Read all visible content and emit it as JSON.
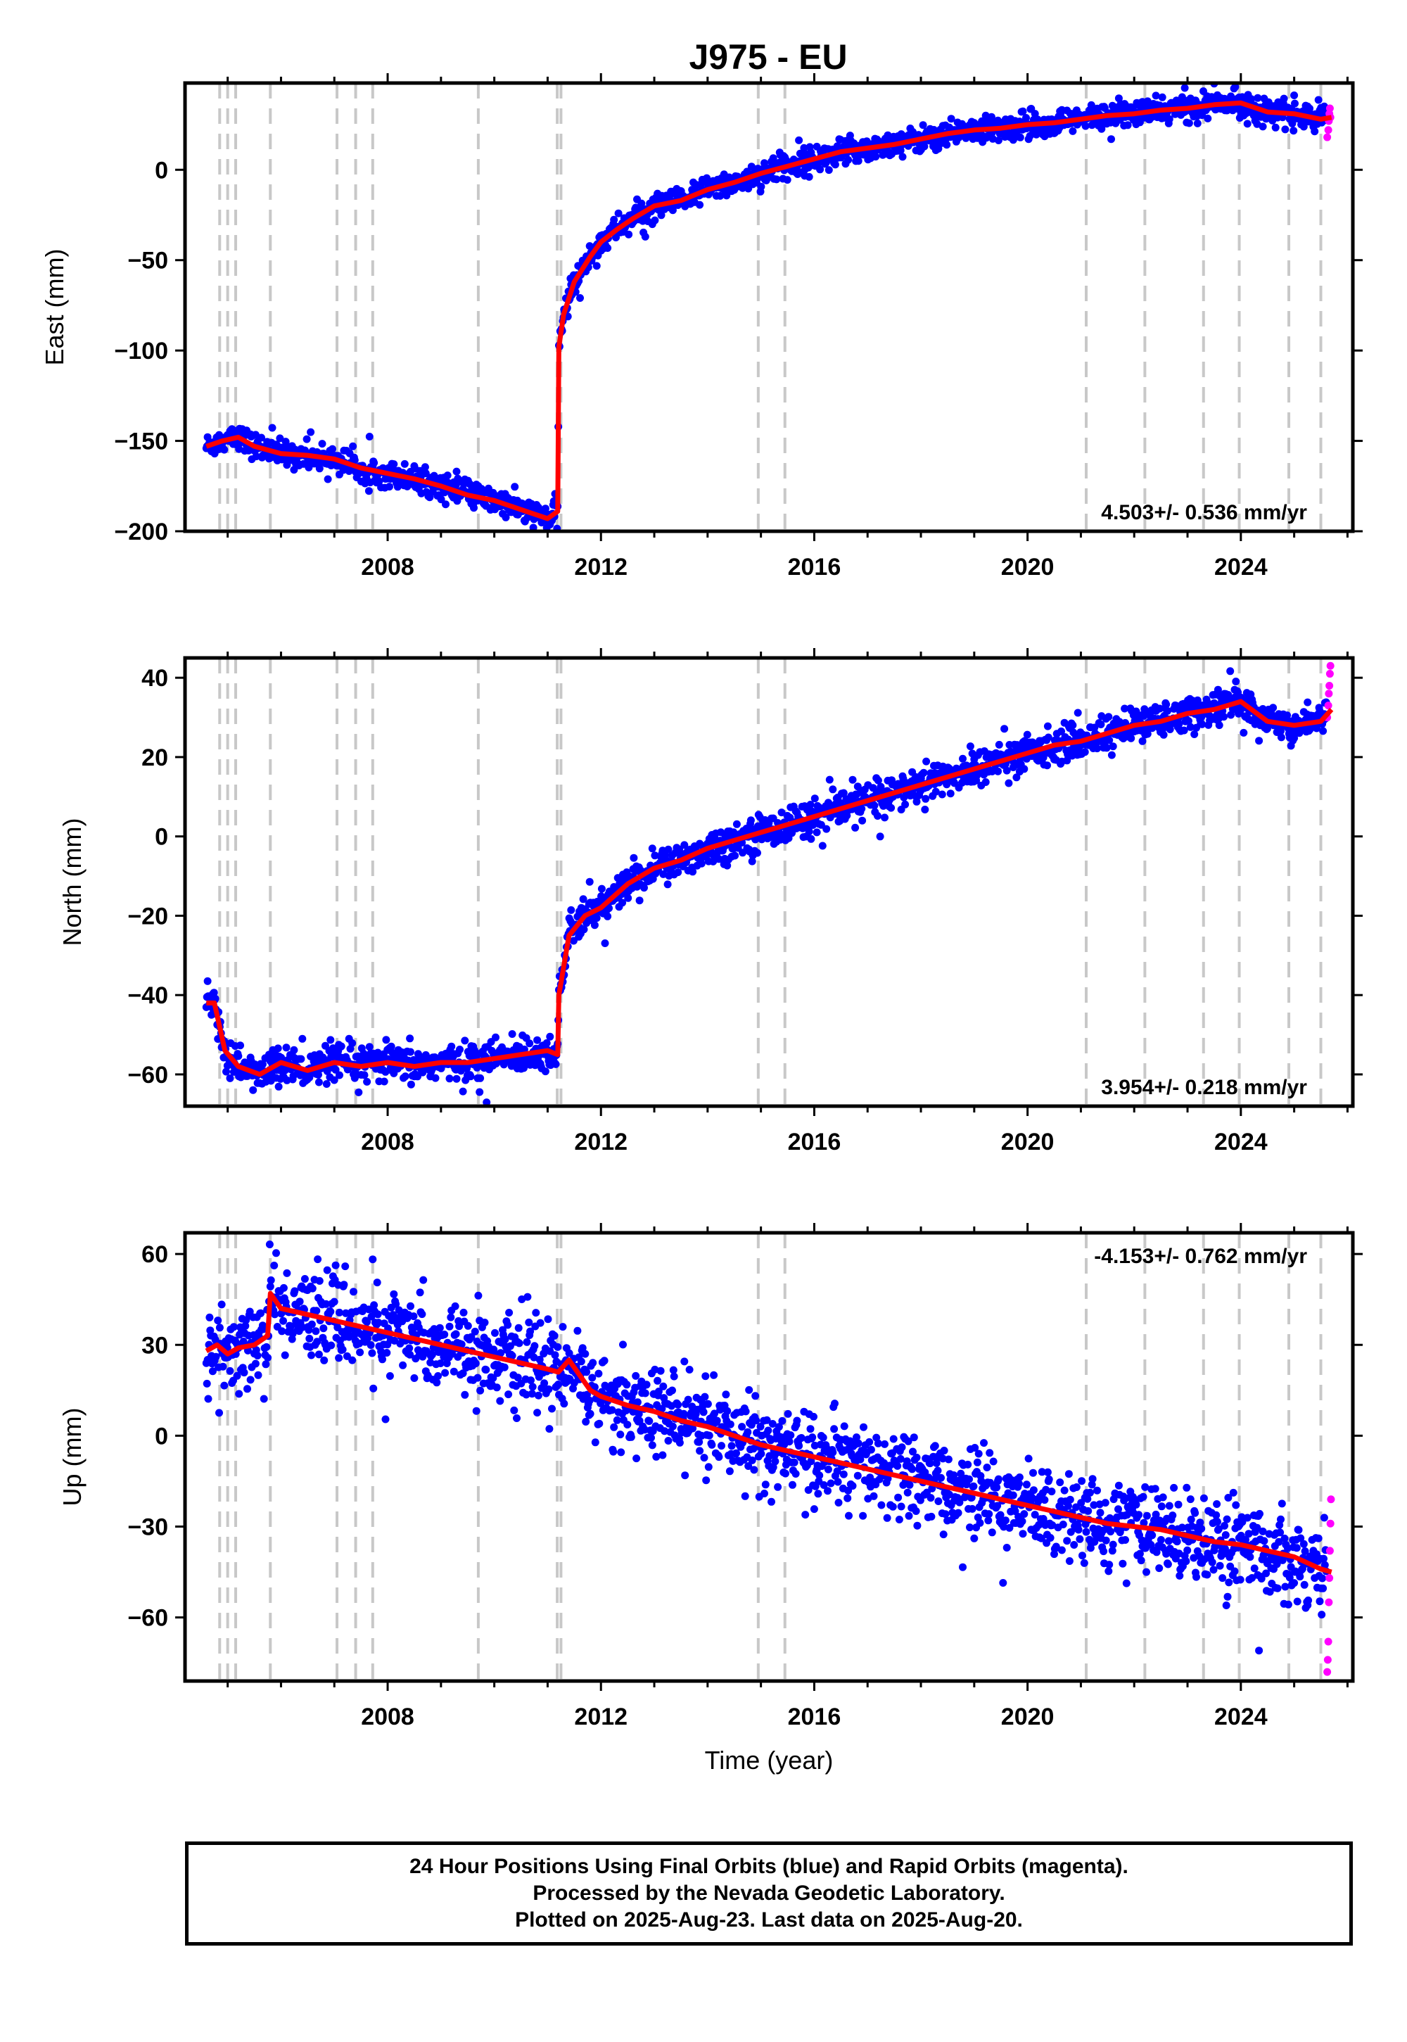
{
  "chart_data": {
    "type": "scatter",
    "title": "J975 - EU",
    "xlabel": "Time (year)",
    "xlim": [
      2004.2,
      2026.1
    ],
    "x_ticks": [
      "2008",
      "2012",
      "2016",
      "2020",
      "2024"
    ],
    "event_lines": [
      2004.85,
      2005.0,
      2005.15,
      2005.8,
      2007.05,
      2007.4,
      2007.72,
      2009.7,
      2011.18,
      2011.25,
      2014.95,
      2015.45,
      2021.1,
      2022.2,
      2023.3,
      2023.97,
      2024.9,
      2025.5
    ],
    "colors": {
      "final_orbits": "#0000ff",
      "rapid_orbits": "#ff00ff",
      "model": "#ff0000",
      "event_line": "#c8c8c8"
    },
    "panels": [
      {
        "component": "east",
        "ylabel": "East (mm)",
        "ylim": [
          -200,
          48
        ],
        "y_ticks": [
          "0",
          "−50",
          "−100",
          "−150",
          "−200"
        ],
        "rate": "4.503+/- 0.536 mm/yr",
        "model": {
          "x": [
            2004.6,
            2004.9,
            2005.2,
            2005.5,
            2006.0,
            2006.5,
            2007.0,
            2007.5,
            2008.0,
            2008.5,
            2009.0,
            2009.5,
            2010.0,
            2010.5,
            2011.0,
            2011.19,
            2011.21,
            2011.3,
            2011.5,
            2011.8,
            2012.0,
            2012.3,
            2012.6,
            2013.0,
            2013.5,
            2014.0,
            2014.5,
            2015.0,
            2015.5,
            2016.0,
            2016.5,
            2017.0,
            2017.5,
            2018.0,
            2018.5,
            2019.0,
            2019.5,
            2020.0,
            2020.5,
            2021.0,
            2021.5,
            2022.0,
            2022.5,
            2023.0,
            2023.5,
            2024.0,
            2024.5,
            2025.0,
            2025.5,
            2025.7
          ],
          "y": [
            -153,
            -150,
            -148,
            -153,
            -157,
            -158,
            -160,
            -165,
            -168,
            -171,
            -175,
            -180,
            -183,
            -188,
            -193,
            -189,
            -98,
            -80,
            -62,
            -48,
            -40,
            -33,
            -27,
            -20,
            -17,
            -11,
            -7,
            -2,
            2,
            6,
            10,
            12,
            14,
            17,
            20,
            22,
            23,
            25,
            26,
            28,
            30,
            31,
            33,
            34,
            36,
            37,
            32,
            31,
            28,
            29
          ]
        },
        "scatter_spread_mm": 3.5,
        "rapid": {
          "x": [
            2025.62,
            2025.64,
            2025.65,
            2025.66,
            2025.67,
            2025.68
          ],
          "y": [
            18,
            22,
            27,
            31,
            34,
            29
          ]
        }
      },
      {
        "component": "north",
        "ylabel": "North (mm)",
        "ylim": [
          -68,
          45
        ],
        "y_ticks": [
          "40",
          "20",
          "0",
          "−20",
          "−40",
          "−60"
        ],
        "rate": "3.954+/- 0.218 mm/yr",
        "model": {
          "x": [
            2004.6,
            2004.75,
            2004.95,
            2005.2,
            2005.6,
            2006.0,
            2006.5,
            2007.0,
            2007.5,
            2008.0,
            2008.5,
            2009.0,
            2009.5,
            2010.0,
            2010.5,
            2011.0,
            2011.19,
            2011.21,
            2011.4,
            2011.7,
            2012.0,
            2012.5,
            2013.0,
            2013.5,
            2014.0,
            2014.5,
            2015.0,
            2015.5,
            2016.0,
            2016.5,
            2017.0,
            2017.5,
            2018.0,
            2018.5,
            2019.0,
            2019.5,
            2020.0,
            2020.5,
            2021.0,
            2021.5,
            2022.0,
            2022.5,
            2023.0,
            2023.5,
            2024.0,
            2024.5,
            2025.0,
            2025.5,
            2025.7
          ],
          "y": [
            -42,
            -42,
            -54,
            -58,
            -60,
            -57,
            -59,
            -57,
            -58,
            -57,
            -58,
            -57,
            -57,
            -56,
            -55,
            -54,
            -55,
            -40,
            -25,
            -20,
            -18,
            -12,
            -8,
            -6,
            -3,
            -1,
            1,
            3,
            5,
            7,
            9,
            11,
            13,
            15,
            17,
            19,
            21,
            23,
            24,
            26,
            28,
            29,
            31,
            32,
            34,
            29,
            28,
            29,
            32
          ]
        },
        "scatter_spread_mm": 2.2,
        "rapid": {
          "x": [
            2025.62,
            2025.64,
            2025.65,
            2025.66,
            2025.67,
            2025.68
          ],
          "y": [
            30,
            33,
            36,
            38,
            41,
            43
          ]
        }
      },
      {
        "component": "up",
        "ylabel": "Up (mm)",
        "ylim": [
          -81,
          67
        ],
        "y_ticks": [
          "60",
          "30",
          "0",
          "−30",
          "−60"
        ],
        "rate": "-4.153+/- 0.762 mm/yr",
        "model": {
          "x": [
            2004.6,
            2004.8,
            2005.0,
            2005.2,
            2005.5,
            2005.75,
            2005.8,
            2006.0,
            2006.5,
            2007.0,
            2007.5,
            2008.0,
            2008.5,
            2009.0,
            2009.5,
            2010.0,
            2010.5,
            2011.0,
            2011.2,
            2011.4,
            2011.8,
            2012.0,
            2012.5,
            2013.0,
            2013.5,
            2014.0,
            2014.5,
            2015.0,
            2015.5,
            2016.0,
            2016.5,
            2017.0,
            2017.5,
            2018.0,
            2018.5,
            2019.0,
            2019.5,
            2020.0,
            2020.5,
            2021.0,
            2021.5,
            2022.0,
            2022.5,
            2023.0,
            2023.5,
            2024.0,
            2024.5,
            2025.0,
            2025.5,
            2025.7
          ],
          "y": [
            28,
            30,
            27,
            29,
            30,
            33,
            47,
            42,
            40,
            38,
            36,
            34,
            32,
            30,
            28,
            26,
            24,
            22,
            21,
            25,
            15,
            13,
            10,
            8,
            5,
            3,
            0,
            -3,
            -5,
            -7,
            -9,
            -11,
            -13,
            -15,
            -17,
            -19,
            -21,
            -23,
            -25,
            -27,
            -29,
            -30,
            -31,
            -33,
            -35,
            -36,
            -38,
            -40,
            -44,
            -45
          ]
        },
        "scatter_spread_mm": 7,
        "rapid": {
          "x": [
            2025.62,
            2025.63,
            2025.64,
            2025.65,
            2025.66,
            2025.67,
            2025.68,
            2025.69
          ],
          "y": [
            -78,
            -74,
            -68,
            -55,
            -47,
            -38,
            -29,
            -21
          ]
        }
      }
    ]
  },
  "footer": {
    "line1": "24 Hour Positions Using Final Orbits (blue) and Rapid Orbits (magenta).",
    "line2": "Processed by the Nevada Geodetic Laboratory.",
    "line3": "Plotted on 2025-Aug-23. Last data on 2025-Aug-20."
  }
}
